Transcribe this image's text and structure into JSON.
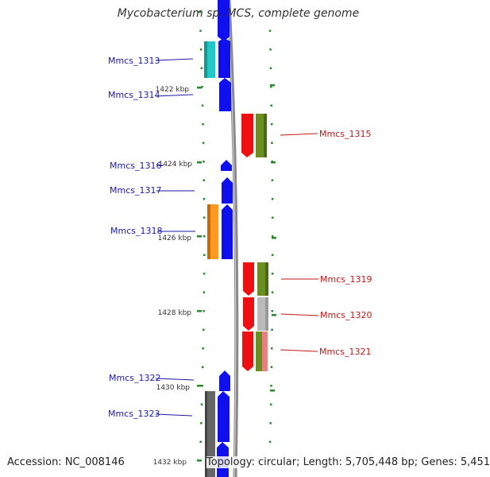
{
  "title": "Mycobacterium sp. MCS, complete genome",
  "accession_text": "Accession: NC_008146",
  "topology_text": "Topology: circular; Length: 5,705,448 bp; Genes: 5,451",
  "colors": {
    "backbone": "#8a8a8a",
    "tick": "#2a8a2a",
    "left_label": "#1a1aa8",
    "right_label": "#c01818",
    "blue_gene": "#1010ee",
    "red_gene": "#ee1010",
    "olive_gene": "#6b8e23",
    "cyan_gene": "#22c8c8",
    "orange_gene": "#ff9922",
    "gray_gene": "#666666",
    "light_gray_gene": "#bbbbbb",
    "pink_gene": "#e88080"
  },
  "kbp_labels": [
    "1422 kbp",
    "1424 kbp",
    "1426 kbp",
    "1428 kbp",
    "1430 kbp",
    "1432 kbp"
  ],
  "genes_left": [
    {
      "label": "Mmcs_1313"
    },
    {
      "label": "Mmcs_1314"
    },
    {
      "label": "Mmcs_1316"
    },
    {
      "label": "Mmcs_1317"
    },
    {
      "label": "Mmcs_1318"
    },
    {
      "label": "Mmcs_1322"
    },
    {
      "label": "Mmcs_1323"
    }
  ],
  "genes_right": [
    {
      "label": "Mmcs_1315"
    },
    {
      "label": "Mmcs_1319"
    },
    {
      "label": "Mmcs_1320"
    },
    {
      "label": "Mmcs_1321"
    }
  ]
}
